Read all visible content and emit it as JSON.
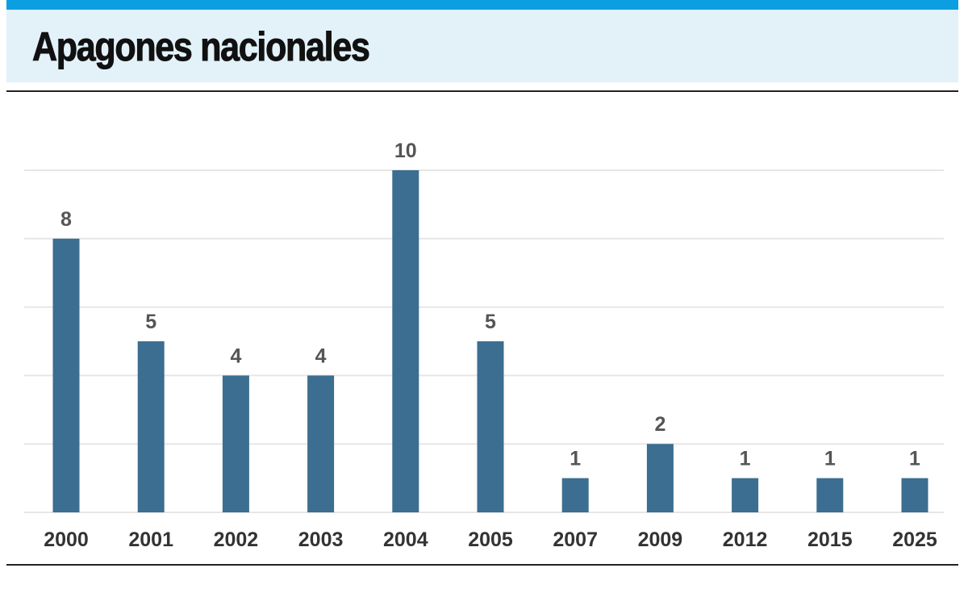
{
  "header": {
    "title": "Apagones nacionales"
  },
  "colors": {
    "accent": "#0b9ee0",
    "band": "#e3f1f9",
    "bar": "#3b6e90",
    "grid": "#e6e6e6"
  },
  "chart_data": {
    "type": "bar",
    "title": "Apagones nacionales",
    "xlabel": "",
    "ylabel": "",
    "categories": [
      "2000",
      "2001",
      "2002",
      "2003",
      "2004",
      "2005",
      "2007",
      "2009",
      "2012",
      "2015",
      "2025"
    ],
    "values": [
      8,
      5,
      4,
      4,
      10,
      5,
      1,
      2,
      1,
      1,
      1
    ],
    "ylim": [
      0,
      10
    ],
    "gridlines": [
      0,
      2,
      4,
      6,
      8,
      10
    ],
    "grid": true,
    "legend": "none"
  }
}
